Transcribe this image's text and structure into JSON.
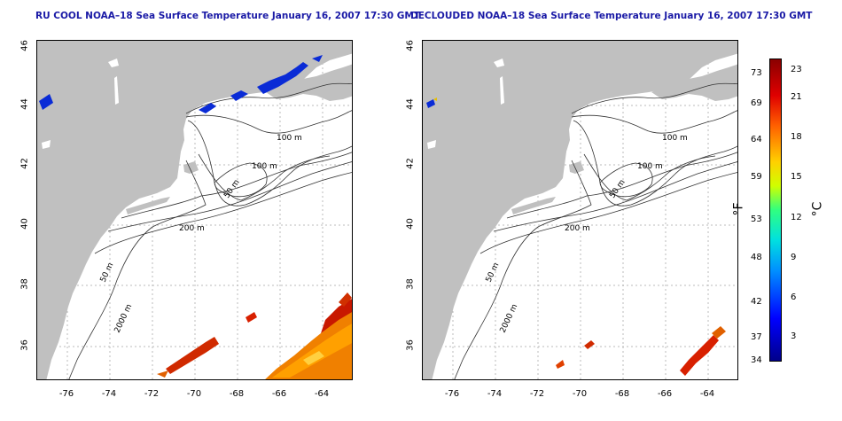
{
  "left_panel": {
    "title": "RU COOL NOAA–18 Sea Surface Temperature January 16, 2007 17:30 GMT"
  },
  "right_panel": {
    "title": "DECLOUDED NOAA–18 Sea Surface Temperature January 16, 2007 17:30 GMT"
  },
  "axes": {
    "lat_ticks": [
      "46",
      "44",
      "42",
      "40",
      "38",
      "36"
    ],
    "lon_ticks": [
      "-76",
      "-74",
      "-72",
      "-70",
      "-68",
      "-66",
      "-64"
    ]
  },
  "contour_labels": {
    "l100a": "100 m",
    "l100b": "100 m",
    "l50a": "50 m",
    "l200": "200 m",
    "l50b": "50 m",
    "l2000": "2000 m"
  },
  "colorbar": {
    "fahrenheit_ticks": [
      "73",
      "69",
      "64",
      "59",
      "53",
      "48",
      "42",
      "37",
      "34"
    ],
    "celsius_ticks": [
      "23",
      "21",
      "18",
      "15",
      "12",
      "9",
      "6",
      "3"
    ],
    "unit_f": "°F",
    "unit_c": "°C"
  },
  "colors": {
    "title": "#1a1aa6",
    "land": "#c0c0c0",
    "ocean": "#ffffff",
    "grid": "#bbbbbb"
  }
}
